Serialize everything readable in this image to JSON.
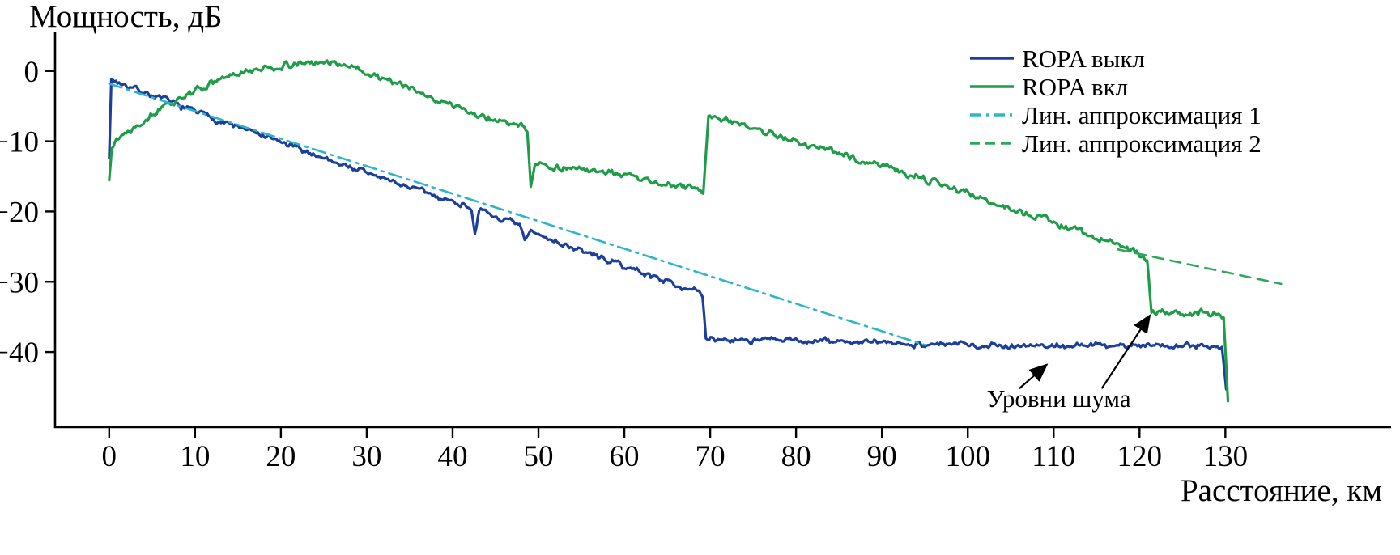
{
  "chart_data": {
    "type": "line",
    "title": "",
    "ylabel": "Мощность, дБ",
    "xlabel": "Расстояние, км",
    "xticks": [
      0,
      10,
      20,
      30,
      40,
      50,
      60,
      70,
      80,
      90,
      100,
      110,
      120,
      130
    ],
    "yticks": [
      0,
      -10,
      -20,
      -30,
      -40
    ],
    "xlim": [
      -6.3,
      149.3
    ],
    "ylim": [
      -50.7,
      5.5
    ],
    "grid": false,
    "legend_position": "top-right",
    "axis_color": "#000000",
    "series": [
      {
        "name": "ROPA выкл",
        "color": "#1c3f9b",
        "style": "solid",
        "width": 3.2,
        "noise": 0.5,
        "seed": 7,
        "points": [
          [
            0,
            -12
          ],
          [
            0.25,
            -1.2
          ],
          [
            10,
            -5.8
          ],
          [
            20,
            -10.2
          ],
          [
            30,
            -14.5
          ],
          [
            40,
            -18.6
          ],
          [
            42.2,
            -19.4
          ],
          [
            42.6,
            -22.8
          ],
          [
            43.1,
            -20.0
          ],
          [
            46,
            -21.2
          ],
          [
            47.8,
            -22.1
          ],
          [
            48.4,
            -24.2
          ],
          [
            49.1,
            -22.9
          ],
          [
            55,
            -25.6
          ],
          [
            60,
            -27.8
          ],
          [
            64,
            -29.5
          ],
          [
            68.3,
            -31.3
          ],
          [
            69.1,
            -32.2
          ],
          [
            69.5,
            -38.2
          ],
          [
            75,
            -38.3
          ],
          [
            85,
            -38.5
          ],
          [
            95,
            -38.9
          ],
          [
            110,
            -39.1
          ],
          [
            125,
            -39.0
          ],
          [
            129.6,
            -39.2
          ],
          [
            130.1,
            -45.3
          ]
        ]
      },
      {
        "name": "ROPA вкл",
        "color": "#1f9c47",
        "style": "solid",
        "width": 3.2,
        "noise": 0.55,
        "seed": 13,
        "points": [
          [
            0,
            -15.5
          ],
          [
            0.3,
            -10.3
          ],
          [
            2,
            -8.6
          ],
          [
            5,
            -6.2
          ],
          [
            9,
            -3.4
          ],
          [
            13,
            -1.2
          ],
          [
            17,
            0.2
          ],
          [
            21,
            0.8
          ],
          [
            25,
            1.3
          ],
          [
            27,
            1.1
          ],
          [
            30,
            -0.3
          ],
          [
            33,
            -1.4
          ],
          [
            36,
            -3.1
          ],
          [
            40,
            -4.9
          ],
          [
            44,
            -6.6
          ],
          [
            48,
            -7.9
          ],
          [
            48.7,
            -8.4
          ],
          [
            49.1,
            -16.3
          ],
          [
            49.6,
            -13.1
          ],
          [
            52,
            -13.7
          ],
          [
            56,
            -14.2
          ],
          [
            60,
            -14.9
          ],
          [
            64,
            -15.9
          ],
          [
            68,
            -16.7
          ],
          [
            69.2,
            -17.4
          ],
          [
            69.8,
            -6.3
          ],
          [
            72,
            -7.0
          ],
          [
            76,
            -8.5
          ],
          [
            80,
            -10.0
          ],
          [
            85,
            -11.8
          ],
          [
            90,
            -13.4
          ],
          [
            95,
            -15.4
          ],
          [
            100,
            -17.4
          ],
          [
            105,
            -19.6
          ],
          [
            110,
            -21.4
          ],
          [
            115,
            -23.7
          ],
          [
            118,
            -24.9
          ],
          [
            120.4,
            -26.4
          ],
          [
            120.9,
            -27.2
          ],
          [
            121.4,
            -34.6
          ],
          [
            123,
            -34.2
          ],
          [
            125,
            -34.6
          ],
          [
            127,
            -34.3
          ],
          [
            129.2,
            -34.7
          ],
          [
            129.8,
            -35.6
          ],
          [
            130.3,
            -47.0
          ]
        ]
      },
      {
        "name": "Лин. аппроксимация 1",
        "color": "#2cb6c9",
        "style": "dashdot",
        "width": 2.6,
        "noise": 0,
        "seed": 1,
        "points": [
          [
            0,
            -1.8
          ],
          [
            95,
            -39.0
          ]
        ]
      },
      {
        "name": "Лин. аппроксимация 2",
        "color": "#2ca85a",
        "style": "dashed",
        "width": 2.6,
        "noise": 0,
        "seed": 2,
        "points": [
          [
            117.5,
            -25.4
          ],
          [
            136.5,
            -30.3
          ]
        ]
      }
    ],
    "annotation": {
      "text": "Уровни шума",
      "x": 110.6,
      "y": -47.8,
      "arrows": [
        {
          "from": [
            106.0,
            -45.2
          ],
          "to": [
            109.2,
            -41.8
          ]
        },
        {
          "from": [
            115.6,
            -45.2
          ],
          "to": [
            121.2,
            -34.8
          ]
        }
      ]
    }
  }
}
